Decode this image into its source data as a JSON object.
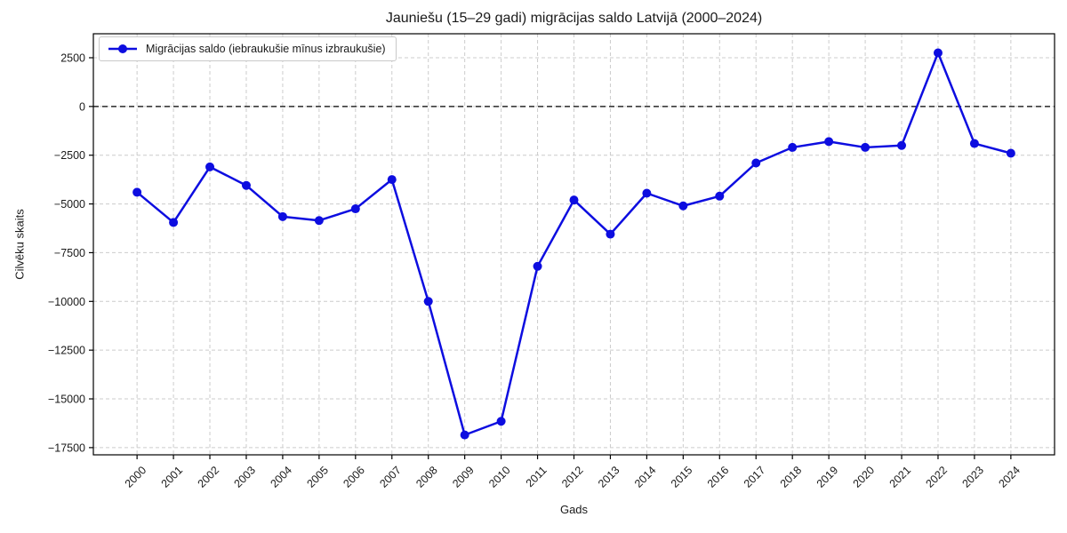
{
  "figure": {
    "background": "#ffffff"
  },
  "colors": {
    "line": "#0d0de0",
    "grid": "#cccccc",
    "zero_line": "#000000",
    "spine": "#000000",
    "text": "#1a1a1a",
    "legend_border": "#c9c9c9"
  },
  "legend": {
    "position": "upper-left"
  },
  "chart_data": {
    "type": "line",
    "title": "Jauniešu (15–29 gadi) migrācijas saldo Latvijā (2000–2024)",
    "xlabel": "Gads",
    "ylabel": "Cilvēku skaits",
    "categories": [
      2000,
      2001,
      2002,
      2003,
      2004,
      2005,
      2006,
      2007,
      2008,
      2009,
      2010,
      2011,
      2012,
      2013,
      2014,
      2015,
      2016,
      2017,
      2018,
      2019,
      2020,
      2021,
      2022,
      2023,
      2024
    ],
    "series": [
      {
        "name": "Migrācijas saldo (iebraukušie mīnus izbraukušie)",
        "color": "#0d0de0",
        "marker": "circle",
        "values": [
          -4400,
          -5950,
          -3100,
          -4050,
          -5650,
          -5850,
          -5250,
          -3750,
          -10000,
          -16850,
          -16150,
          -8200,
          -4800,
          -6550,
          -4450,
          -5100,
          -4600,
          -2900,
          -2100,
          -1800,
          -2100,
          -2000,
          2750,
          -1900,
          -2400
        ]
      }
    ],
    "xlim": [
      1998.8,
      2025.2
    ],
    "ylim": [
      -17870,
      3730
    ],
    "yticks": [
      2500,
      0,
      -2500,
      -5000,
      -7500,
      -10000,
      -12500,
      -15000,
      -17500
    ],
    "grid": true,
    "grid_style": "dashed",
    "zero_line": true,
    "legend_position": "upper-left"
  }
}
